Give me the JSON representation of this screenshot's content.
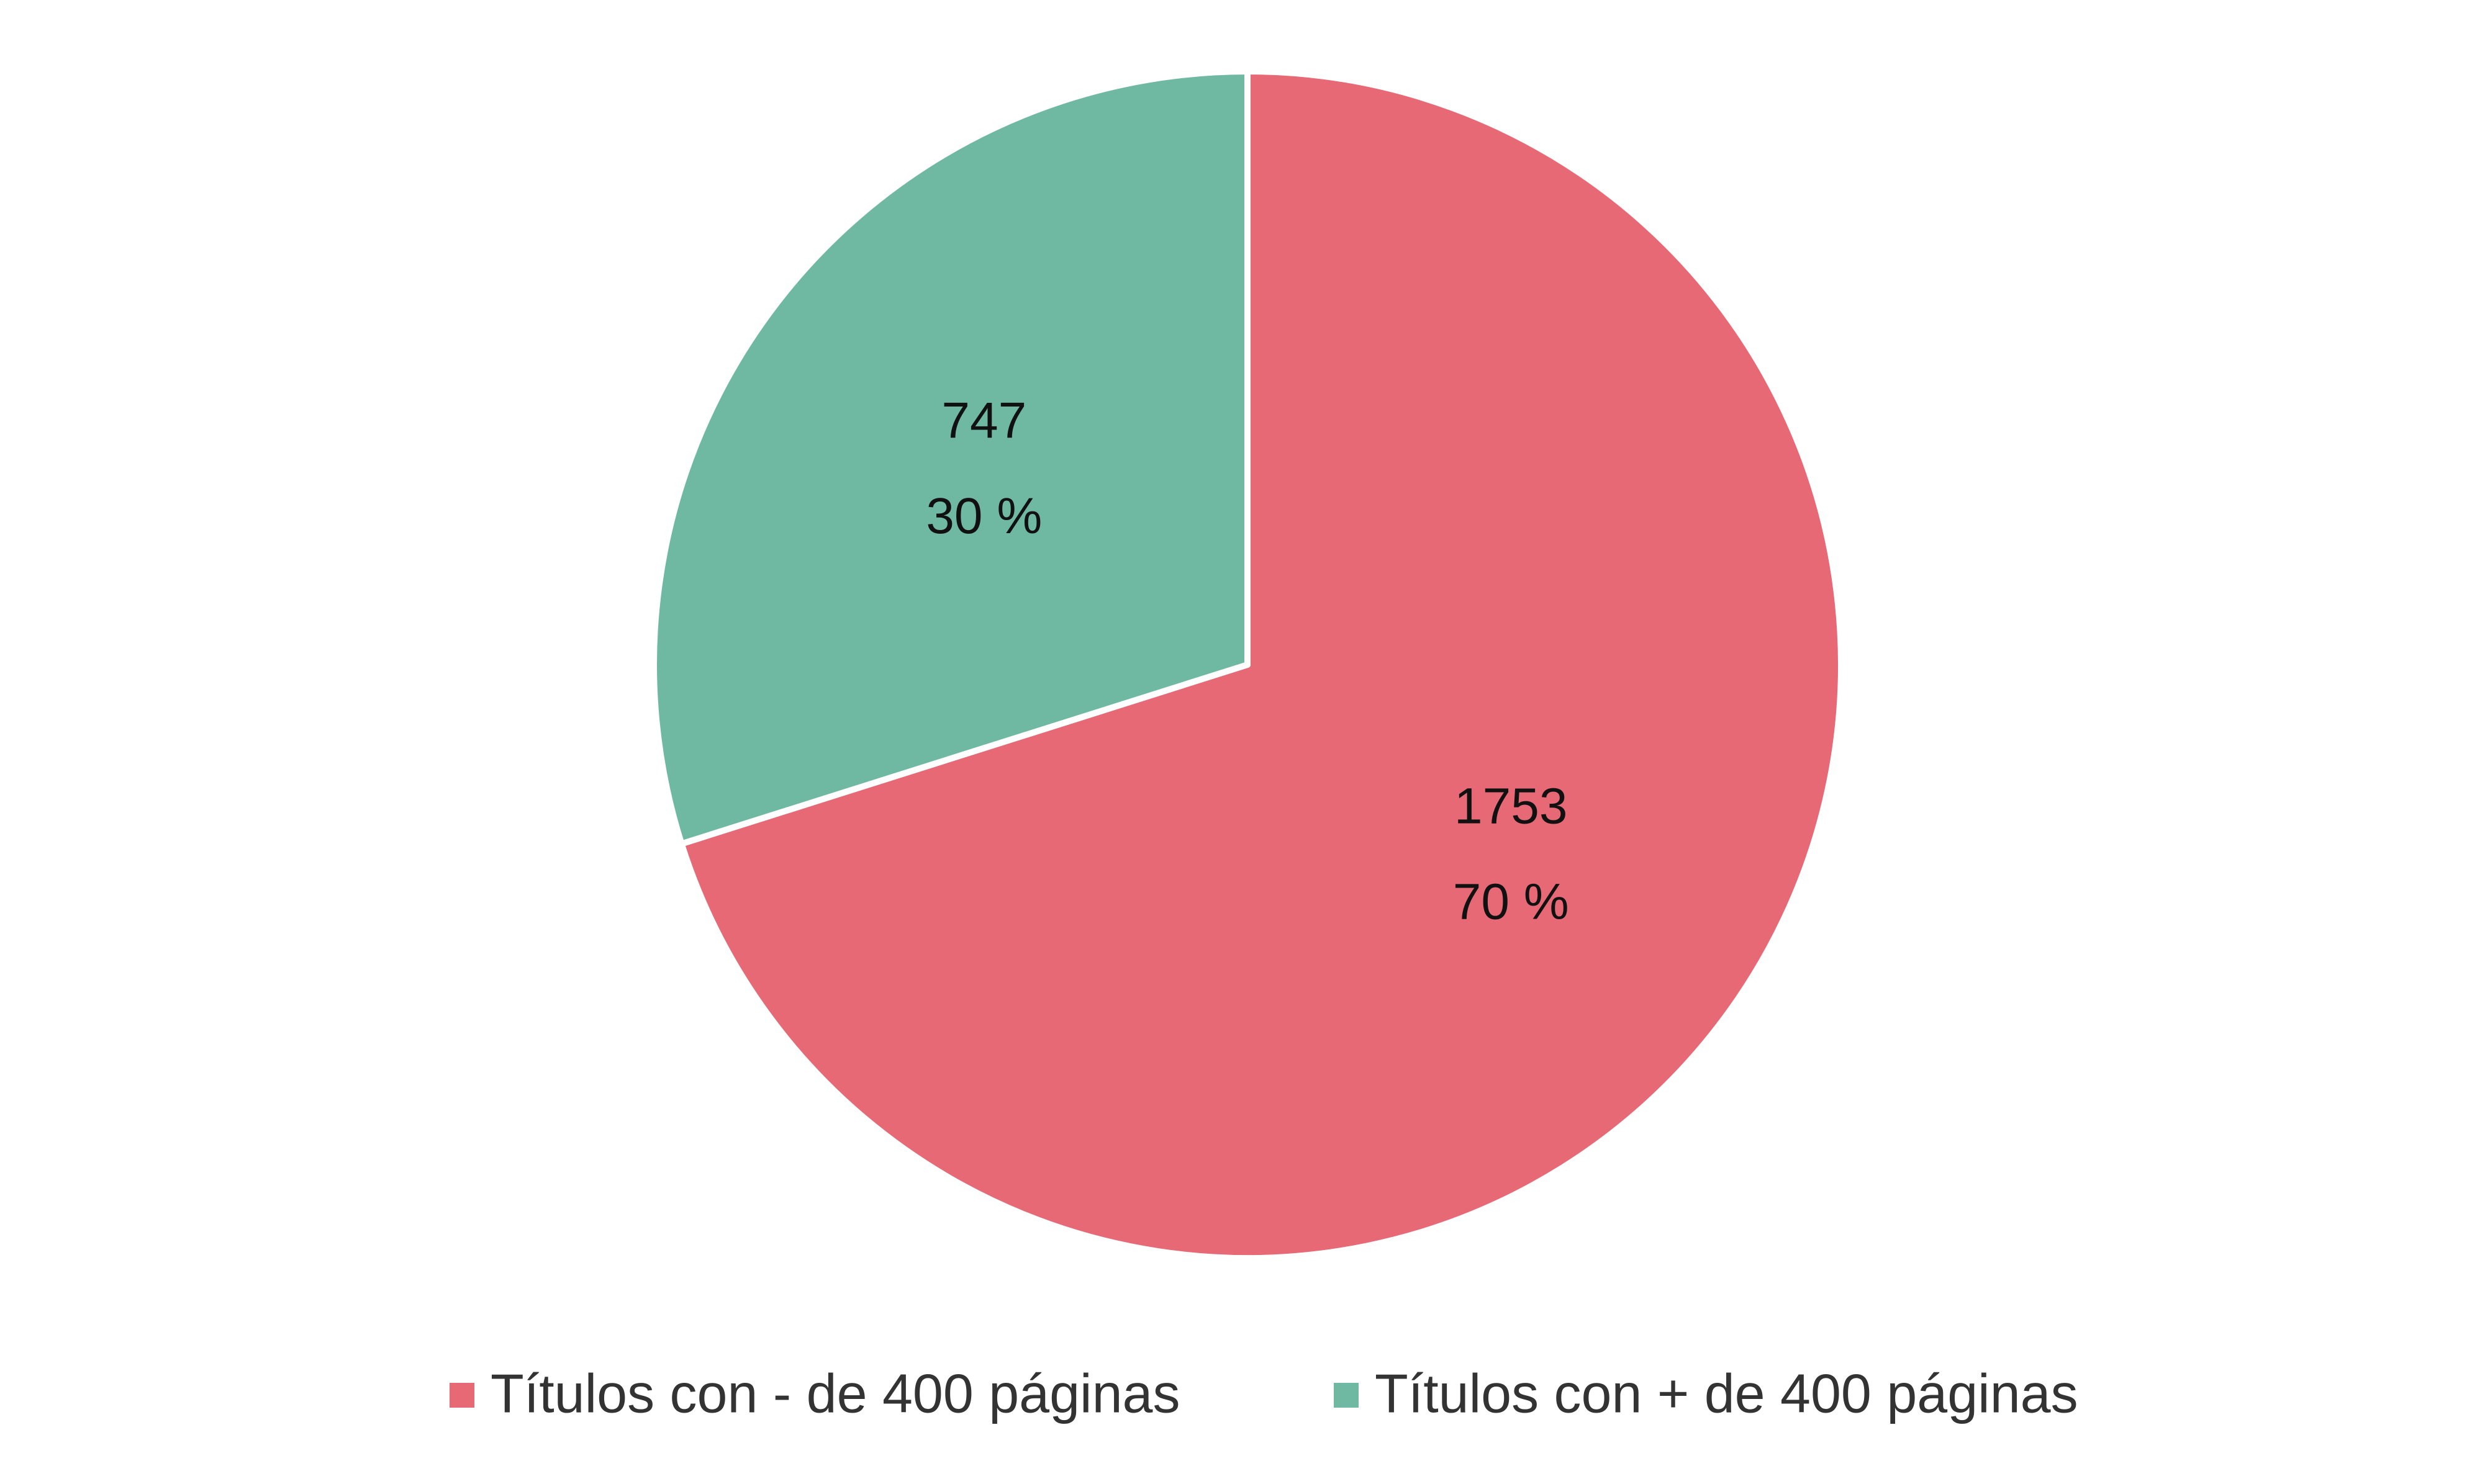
{
  "chart_data": {
    "type": "pie",
    "categories": [
      "Títulos con - de 400 páginas",
      "Títulos con + de 400 páginas"
    ],
    "values": [
      1753,
      747
    ],
    "percentages": [
      70,
      30
    ],
    "percentage_labels": [
      "70 %",
      "30 %"
    ],
    "colors": [
      "#e76975",
      "#6fb9a2"
    ],
    "legend": "bottom"
  }
}
